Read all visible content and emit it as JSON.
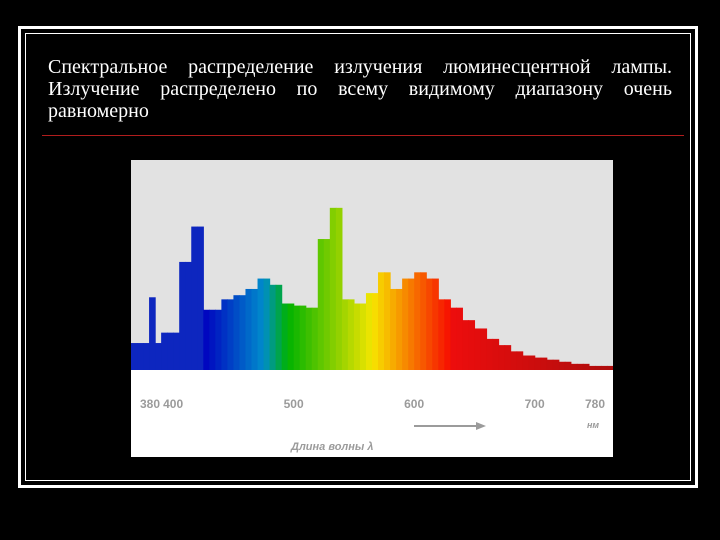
{
  "slide": {
    "caption": "Спектральное распределение излучения люминесцентной лампы. Излучение распределено по всему видимому диапазону очень равномерно",
    "colors": {
      "background": "#000000",
      "frame": "#ffffff",
      "rule": "#b11d1d",
      "plot_background": "#e2e2e2",
      "axis_band": "#ffffff",
      "label_gray": "#9b9b9b"
    }
  },
  "chart_data": {
    "type": "bar",
    "title": "",
    "xlabel": "Длина волны λ",
    "unit": "нм",
    "ylabel": "",
    "xlim": [
      380,
      780
    ],
    "ylim": [
      0,
      1
    ],
    "grid": false,
    "legend": "none",
    "tick_labels": [
      "380",
      "400",
      "500",
      "600",
      "700",
      "780"
    ],
    "tick_values": [
      380,
      400,
      500,
      600,
      700,
      780
    ],
    "x": [
      380,
      385,
      390,
      395,
      400,
      405,
      410,
      415,
      420,
      425,
      430,
      435,
      440,
      445,
      450,
      455,
      460,
      465,
      470,
      475,
      480,
      485,
      490,
      495,
      500,
      505,
      510,
      515,
      520,
      525,
      530,
      535,
      540,
      545,
      550,
      555,
      560,
      565,
      570,
      575,
      580,
      585,
      590,
      595,
      600,
      605,
      610,
      615,
      620,
      625,
      630,
      635,
      640,
      645,
      650,
      655,
      660,
      665,
      670,
      675,
      680,
      685,
      690,
      695,
      700,
      705,
      710,
      715,
      720,
      725,
      730,
      735,
      740,
      745,
      750,
      755,
      760,
      765,
      770,
      775
    ],
    "values": [
      0.12,
      0.12,
      0.12,
      0.34,
      0.12,
      0.17,
      0.17,
      0.17,
      0.51,
      0.51,
      0.68,
      0.68,
      0.28,
      0.28,
      0.28,
      0.33,
      0.33,
      0.35,
      0.35,
      0.38,
      0.38,
      0.43,
      0.43,
      0.4,
      0.4,
      0.31,
      0.31,
      0.3,
      0.3,
      0.29,
      0.29,
      0.62,
      0.62,
      0.77,
      0.77,
      0.33,
      0.33,
      0.31,
      0.31,
      0.36,
      0.36,
      0.46,
      0.46,
      0.38,
      0.38,
      0.43,
      0.43,
      0.46,
      0.46,
      0.43,
      0.43,
      0.33,
      0.33,
      0.29,
      0.29,
      0.23,
      0.23,
      0.19,
      0.19,
      0.14,
      0.14,
      0.11,
      0.11,
      0.08,
      0.08,
      0.06,
      0.06,
      0.05,
      0.05,
      0.04,
      0.04,
      0.03,
      0.03,
      0.02,
      0.02,
      0.02,
      0.01,
      0.01,
      0.01,
      0.01
    ]
  }
}
